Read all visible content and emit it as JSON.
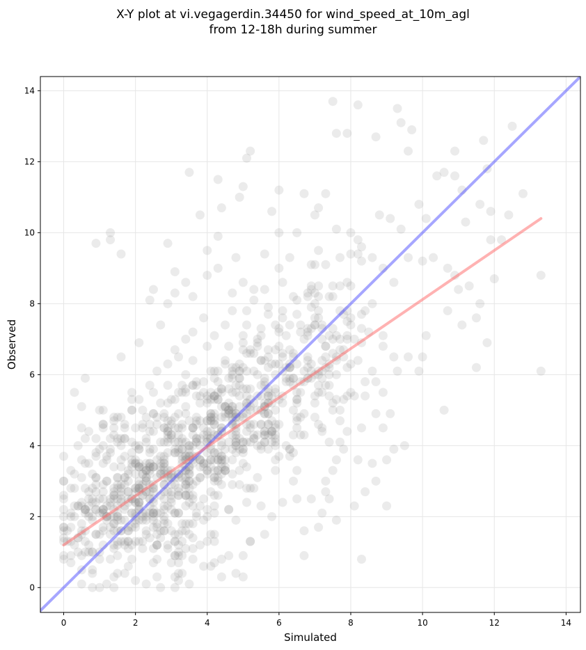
{
  "chart_data": {
    "type": "scatter",
    "title": [
      "X-Y plot at vi.vegagerdin.34450 for wind_speed_at_10m_agl",
      "from 12-18h during summer"
    ],
    "xlabel": "Simulated",
    "ylabel": "Observed",
    "xlim": [
      -0.65,
      14.4
    ],
    "ylim": [
      -0.7,
      14.4
    ],
    "xticks": [
      0,
      2,
      4,
      6,
      8,
      10,
      12,
      14
    ],
    "yticks": [
      0,
      2,
      4,
      6,
      8,
      10,
      12,
      14
    ],
    "xtick_labels": [
      "0",
      "2",
      "4",
      "6",
      "8",
      "10",
      "12",
      "14"
    ],
    "ytick_labels": [
      "0",
      "2",
      "4",
      "6",
      "8",
      "10",
      "12",
      "14"
    ],
    "grid": true,
    "colors": {
      "points": "#808080",
      "identity_line": "#4d4dff",
      "fit_line": "#ff6666",
      "grid": "#e6e6e6"
    },
    "series": [
      {
        "kind": "points",
        "points": [
          [
            0.0,
            3.0
          ],
          [
            0.3,
            5.5
          ],
          [
            0.6,
            5.9
          ],
          [
            0.9,
            9.7
          ],
          [
            1.3,
            10.0
          ],
          [
            0.2,
            0.7
          ],
          [
            0.5,
            0.1
          ],
          [
            1.0,
            0.0
          ],
          [
            1.2,
            0.1
          ],
          [
            1.4,
            0.0
          ],
          [
            1.6,
            6.5
          ],
          [
            2.1,
            6.9
          ],
          [
            2.4,
            8.1
          ],
          [
            2.9,
            8.0
          ],
          [
            3.1,
            8.9
          ],
          [
            3.5,
            11.7
          ],
          [
            4.0,
            9.5
          ],
          [
            4.3,
            11.5
          ],
          [
            4.4,
            10.7
          ],
          [
            4.9,
            11.0
          ],
          [
            5.1,
            12.1
          ],
          [
            5.2,
            12.3
          ],
          [
            5.0,
            11.3
          ],
          [
            6.0,
            11.2
          ],
          [
            5.8,
            10.6
          ],
          [
            7.5,
            13.7
          ],
          [
            7.6,
            12.8
          ],
          [
            7.9,
            12.8
          ],
          [
            8.2,
            13.6
          ],
          [
            8.7,
            12.7
          ],
          [
            9.3,
            13.5
          ],
          [
            9.4,
            13.1
          ],
          [
            9.7,
            12.9
          ],
          [
            9.6,
            12.3
          ],
          [
            10.9,
            12.3
          ],
          [
            11.7,
            12.6
          ],
          [
            11.8,
            11.8
          ],
          [
            12.5,
            13.0
          ],
          [
            12.8,
            11.1
          ],
          [
            10.4,
            11.6
          ],
          [
            10.9,
            11.6
          ],
          [
            11.1,
            11.2
          ],
          [
            10.6,
            11.7
          ],
          [
            11.6,
            10.8
          ],
          [
            11.9,
            10.6
          ],
          [
            11.2,
            10.3
          ],
          [
            12.4,
            10.5
          ],
          [
            13.3,
            8.8
          ],
          [
            13.3,
            6.1
          ],
          [
            11.5,
            6.2
          ],
          [
            11.8,
            6.9
          ],
          [
            10.6,
            5.0
          ],
          [
            9.5,
            4.0
          ],
          [
            9.2,
            3.9
          ],
          [
            9.0,
            3.6
          ],
          [
            9.0,
            2.3
          ],
          [
            8.7,
            3.0
          ],
          [
            8.4,
            2.7
          ],
          [
            8.3,
            0.8
          ],
          [
            7.6,
            1.9
          ],
          [
            7.1,
            1.7
          ],
          [
            7.2,
            2.1
          ],
          [
            6.7,
            0.9
          ],
          [
            6.7,
            1.6
          ],
          [
            3.5,
            0.1
          ],
          [
            4.1,
            0.6
          ],
          [
            4.4,
            0.3
          ],
          [
            5.0,
            0.3
          ],
          [
            4.8,
            0.4
          ],
          [
            7.4,
            2.5
          ],
          [
            7.3,
            2.7
          ],
          [
            8.1,
            2.3
          ],
          [
            9.9,
            10.8
          ],
          [
            10.1,
            10.4
          ],
          [
            9.4,
            10.1
          ],
          [
            9.1,
            10.4
          ],
          [
            8.8,
            10.5
          ],
          [
            8.0,
            10.0
          ],
          [
            7.6,
            10.1
          ],
          [
            7.0,
            10.5
          ],
          [
            7.1,
            10.7
          ],
          [
            7.3,
            11.1
          ],
          [
            6.7,
            11.1
          ],
          [
            6.5,
            10.0
          ],
          [
            6.0,
            10.0
          ],
          [
            6.3,
            9.3
          ],
          [
            5.6,
            9.4
          ],
          [
            4.8,
            9.3
          ],
          [
            4.3,
            9.9
          ],
          [
            3.8,
            10.5
          ],
          [
            2.9,
            9.7
          ],
          [
            1.6,
            9.4
          ],
          [
            1.3,
            9.8
          ],
          [
            2.5,
            8.4
          ],
          [
            2.7,
            7.4
          ],
          [
            3.1,
            8.3
          ],
          [
            3.4,
            8.6
          ],
          [
            3.6,
            8.2
          ],
          [
            4.0,
            8.8
          ],
          [
            4.3,
            9.0
          ],
          [
            4.7,
            8.3
          ],
          [
            5.0,
            8.6
          ],
          [
            5.3,
            8.1
          ],
          [
            5.6,
            8.4
          ],
          [
            6.1,
            8.6
          ],
          [
            6.5,
            8.1
          ],
          [
            6.9,
            8.5
          ],
          [
            7.0,
            8.0
          ],
          [
            7.3,
            9.1
          ],
          [
            7.7,
            9.3
          ],
          [
            8.0,
            9.4
          ],
          [
            8.3,
            9.6
          ],
          [
            8.6,
            9.3
          ],
          [
            8.9,
            9.0
          ],
          [
            9.2,
            8.6
          ],
          [
            9.6,
            9.3
          ],
          [
            10.0,
            9.2
          ],
          [
            10.3,
            9.3
          ],
          [
            10.7,
            9.0
          ],
          [
            11.0,
            8.4
          ],
          [
            11.3,
            8.5
          ],
          [
            11.6,
            8.0
          ],
          [
            12.0,
            8.7
          ],
          [
            12.2,
            9.8
          ],
          [
            11.9,
            9.8
          ],
          [
            10.9,
            8.8
          ],
          [
            10.7,
            7.8
          ],
          [
            11.1,
            7.4
          ],
          [
            11.5,
            7.6
          ],
          [
            10.1,
            7.1
          ],
          [
            10.0,
            6.5
          ],
          [
            9.6,
            6.5
          ],
          [
            9.2,
            6.5
          ],
          [
            8.9,
            6.8
          ],
          [
            8.6,
            6.1
          ],
          [
            8.2,
            6.4
          ],
          [
            7.8,
            6.5
          ],
          [
            7.4,
            6.2
          ],
          [
            7.0,
            6.0
          ],
          [
            9.9,
            6.1
          ],
          [
            8.9,
            5.5
          ],
          [
            8.7,
            5.8
          ],
          [
            8.4,
            5.4
          ],
          [
            8.1,
            5.4
          ],
          [
            9.1,
            4.9
          ],
          [
            8.7,
            4.9
          ],
          [
            8.9,
            4.5
          ],
          [
            8.3,
            4.5
          ],
          [
            7.9,
            4.4
          ],
          [
            7.8,
            3.9
          ],
          [
            8.2,
            3.6
          ],
          [
            8.6,
            3.5
          ],
          [
            7.6,
            3.6
          ],
          [
            7.5,
            3.3
          ],
          [
            7.3,
            3.0
          ],
          [
            6.9,
            2.5
          ],
          [
            6.5,
            2.5
          ],
          [
            6.1,
            2.4
          ],
          [
            5.8,
            2.0
          ],
          [
            5.6,
            1.5
          ],
          [
            5.2,
            1.3
          ],
          [
            5.0,
            0.9
          ],
          [
            4.6,
            0.9
          ],
          [
            3.9,
            0.6
          ],
          [
            3.3,
            0.4
          ],
          [
            2.6,
            0.3
          ],
          [
            2.3,
            0.1
          ],
          [
            2.0,
            0.2
          ],
          [
            1.7,
            0.4
          ],
          [
            0.8,
            0.4
          ],
          [
            0.5,
            0.5
          ],
          [
            0.1,
            1.3
          ],
          [
            0.2,
            2.1
          ],
          [
            0.3,
            2.8
          ],
          [
            0.4,
            4.0
          ],
          [
            0.7,
            4.4
          ],
          [
            0.9,
            4.2
          ],
          [
            1.1,
            4.6
          ],
          [
            1.3,
            3.9
          ],
          [
            1.6,
            4.8
          ],
          [
            1.9,
            5.3
          ],
          [
            2.2,
            5.0
          ],
          [
            2.4,
            5.7
          ],
          [
            2.6,
            6.1
          ],
          [
            2.9,
            6.3
          ],
          [
            3.1,
            6.7
          ],
          [
            3.4,
            7.0
          ],
          [
            3.6,
            7.2
          ],
          [
            3.9,
            7.6
          ],
          [
            4.2,
            7.1
          ],
          [
            4.5,
            7.4
          ],
          [
            4.7,
            7.8
          ],
          [
            5.1,
            7.4
          ],
          [
            5.4,
            7.0
          ],
          [
            5.7,
            7.7
          ],
          [
            6.0,
            7.3
          ],
          [
            6.3,
            6.7
          ],
          [
            6.7,
            7.0
          ],
          [
            7.1,
            7.6
          ],
          [
            7.5,
            7.3
          ],
          [
            7.9,
            7.8
          ],
          [
            8.1,
            7.0
          ],
          [
            8.5,
            7.2
          ]
        ]
      },
      {
        "kind": "density_clusters",
        "note_visible": false,
        "clusters": [
          [
            1.0,
            1.8,
            0.9,
            0.9,
            120
          ],
          [
            2.2,
            2.8,
            1.0,
            1.0,
            170
          ],
          [
            3.5,
            3.6,
            1.0,
            1.2,
            190
          ],
          [
            4.6,
            4.6,
            1.0,
            1.3,
            170
          ],
          [
            5.6,
            5.3,
            1.0,
            1.4,
            120
          ],
          [
            6.6,
            6.2,
            1.0,
            1.5,
            80
          ],
          [
            7.6,
            7.2,
            1.0,
            1.6,
            50
          ],
          [
            1.8,
            4.2,
            0.9,
            1.0,
            60
          ],
          [
            3.0,
            1.3,
            0.9,
            0.7,
            60
          ]
        ]
      },
      {
        "kind": "line",
        "role": "identity",
        "x": [
          -0.65,
          14.4
        ],
        "y": [
          -0.65,
          14.4
        ]
      },
      {
        "kind": "line",
        "role": "fit",
        "x": [
          0.0,
          13.3
        ],
        "y": [
          1.2,
          10.4
        ]
      }
    ]
  }
}
